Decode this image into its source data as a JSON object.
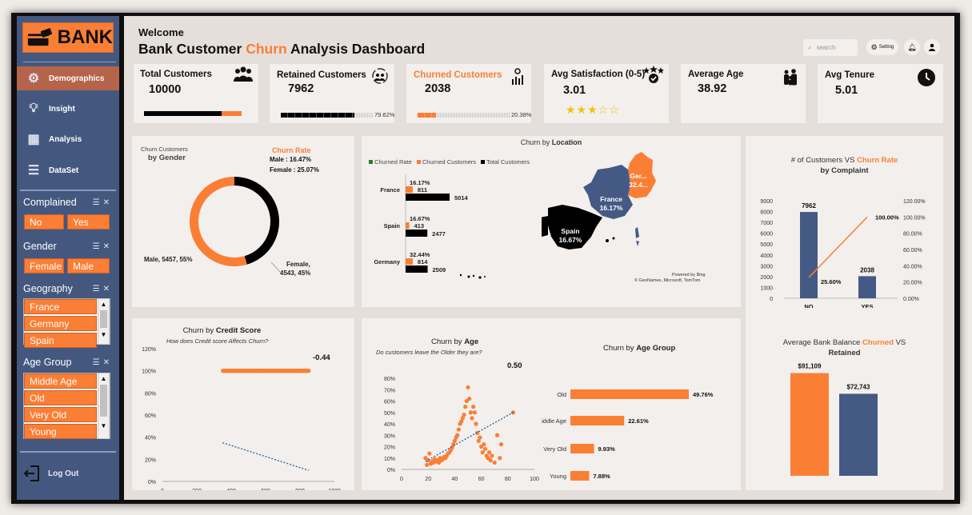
{
  "brand": {
    "logo_text": "BANK"
  },
  "sidebar": {
    "nav": [
      {
        "label": "Demographics",
        "icon": "people-network-icon"
      },
      {
        "label": "Insight",
        "icon": "lightbulb-icon"
      },
      {
        "label": "Analysis",
        "icon": "analysis-icon"
      },
      {
        "label": "DataSet",
        "icon": "database-icon"
      }
    ],
    "logout": "Log Out"
  },
  "filters": {
    "complained": {
      "title": "Complained",
      "options": [
        "No",
        "Yes"
      ]
    },
    "gender": {
      "title": "Gender",
      "options": [
        "Female",
        "Male"
      ]
    },
    "geography": {
      "title": "Geography",
      "options": [
        "France",
        "Germany",
        "Spain"
      ]
    },
    "age_group": {
      "title": "Age Group",
      "options": [
        "Middle Age",
        "Old",
        "Very Old",
        "Young"
      ]
    }
  },
  "header": {
    "welcome": "Welcome",
    "title_prefix": "Bank Customer ",
    "title_accent": "Churn",
    "title_suffix": " Analysis Dashboard",
    "search_placeholder": "search",
    "setting_label": "Setting"
  },
  "kpis": {
    "total": {
      "label": "Total Customers",
      "value": "10000"
    },
    "retained": {
      "label": "Retained Customers",
      "value": "7962",
      "pct": "79.62%",
      "fill": 0.7962
    },
    "churned": {
      "label": "Churned Customers",
      "value": "2038",
      "pct": "20.38%",
      "fill": 0.2038
    },
    "satisfaction": {
      "label": "Avg Satisfaction (0-5)",
      "value": "3.01",
      "stars": 3,
      "max_stars": 5
    },
    "age": {
      "label": "Average Age",
      "value": "38.92"
    },
    "tenure": {
      "label": "Avg Tenure",
      "value": "5.01"
    }
  },
  "gender_card": {
    "head1": "Churn Customers",
    "head2": "by Gender",
    "rate_title": "Churn Rate",
    "male_rate": "Male : 16.47%",
    "female_rate": "Female : 25.07%"
  },
  "location_card": {
    "title_prefix": "Churn by ",
    "title_bold": "Location",
    "attribution1": "Powered by Bing",
    "attribution2": "© GeoNames, Microsoft, TomTom"
  },
  "complaint_card": {
    "title_prefix": "# of Customers VS ",
    "title_accent": "Churn Rate",
    "title_line2": "by Complaint"
  },
  "credit_card": {
    "title_prefix": "Churn by ",
    "title_bold": "Credit Score",
    "subtitle": "How does Credit score Affects Churn?",
    "corr": "-0.44"
  },
  "age_card": {
    "title_prefix": "Churn by ",
    "title_bold": "Age",
    "subtitle": "Do customers leave the Older they are?",
    "corr": "0.50",
    "group_title_prefix": "Churn by ",
    "group_title_bold": "Age Group"
  },
  "balance_card": {
    "title_prefix": "Average Bank Balance ",
    "title_accent": "Churned",
    "title_suffix": " VS",
    "title_line2": "Retained"
  },
  "colors": {
    "orange": "#fb7e35",
    "navy": "#445a84",
    "black": "#000000",
    "green": "#2e7d32",
    "sidebar": "#44587f"
  },
  "chart_data": [
    {
      "type": "pie",
      "title": "Churn Customers by Gender",
      "categories": [
        "Male",
        "Female"
      ],
      "values": [
        5457,
        4543
      ],
      "percent": [
        55,
        45
      ],
      "labels": [
        "Male, 5457, 55%",
        "Female, 4543, 45%"
      ]
    },
    {
      "type": "bar",
      "title": "Churn by Location",
      "categories": [
        "France",
        "Spain",
        "Germany"
      ],
      "series": [
        {
          "name": "Churned Rate",
          "values": [
            "16.17%",
            "16.67%",
            "32.44%"
          ]
        },
        {
          "name": "Churned Customers",
          "values": [
            811,
            413,
            814
          ]
        },
        {
          "name": "Total Customers",
          "values": [
            5014,
            2477,
            2509
          ]
        }
      ],
      "map_labels": [
        {
          "name": "France",
          "value": "16.17%"
        },
        {
          "name": "Spain",
          "value": "16.67%"
        },
        {
          "name": "Ger...",
          "value": "32.4..."
        }
      ]
    },
    {
      "type": "bar",
      "title": "# of Customers VS Churn Rate by Complaint",
      "categories": [
        "NO",
        "YES"
      ],
      "series": [
        {
          "values": [
            7962,
            2038
          ],
          "labels": [
            "7962",
            "2038"
          ]
        },
        {
          "values": [
            25.6,
            100
          ],
          "labels": [
            "25.60%",
            "100.00%"
          ]
        }
      ],
      "y_ticks": [
        "0",
        "1000",
        "2000",
        "3000",
        "4000",
        "5000",
        "6000",
        "7000",
        "8000",
        "9000"
      ],
      "y2_ticks": [
        "0.00%",
        "20.00%",
        "40.00%",
        "60.00%",
        "80.00%",
        "100.00%",
        "120.00%"
      ],
      "ylim": [
        0,
        9000
      ],
      "y2lim": [
        0,
        120
      ]
    },
    {
      "type": "scatter",
      "title": "Churn by Credit Score",
      "xlim": [
        0,
        1000
      ],
      "ylim": [
        0,
        120
      ],
      "x_ticks": [
        "0",
        "200",
        "400",
        "600",
        "800",
        "1000"
      ],
      "y_ticks": [
        "0%",
        "20%",
        "40%",
        "60%",
        "80%",
        "100%",
        "120%"
      ],
      "correlation": -0.44,
      "points": [
        [
          352,
          100
        ],
        [
          355,
          100
        ],
        [
          358,
          100
        ],
        [
          361,
          100
        ],
        [
          364,
          100
        ],
        [
          367,
          100
        ],
        [
          370,
          100
        ],
        [
          373,
          100
        ],
        [
          376,
          100
        ],
        [
          379,
          100
        ],
        [
          382,
          100
        ],
        [
          385,
          100
        ],
        [
          388,
          100
        ],
        [
          391,
          100
        ],
        [
          394,
          100
        ],
        [
          397,
          100
        ],
        [
          400,
          100
        ],
        [
          403,
          100
        ],
        [
          406,
          100
        ],
        [
          409,
          100
        ],
        [
          412,
          100
        ],
        [
          415,
          100
        ],
        [
          418,
          100
        ],
        [
          421,
          100
        ],
        [
          424,
          100
        ],
        [
          427,
          100
        ],
        [
          430,
          100
        ],
        [
          433,
          100
        ],
        [
          436,
          100
        ],
        [
          439,
          100
        ],
        [
          442,
          100
        ],
        [
          445,
          100
        ],
        [
          448,
          100
        ],
        [
          451,
          100
        ],
        [
          454,
          100
        ],
        [
          457,
          100
        ],
        [
          460,
          100
        ],
        [
          463,
          100
        ],
        [
          466,
          100
        ],
        [
          469,
          100
        ],
        [
          472,
          100
        ],
        [
          475,
          100
        ],
        [
          478,
          100
        ],
        [
          481,
          100
        ],
        [
          484,
          100
        ],
        [
          487,
          100
        ],
        [
          490,
          100
        ],
        [
          493,
          100
        ],
        [
          496,
          100
        ],
        [
          499,
          100
        ],
        [
          502,
          100
        ],
        [
          505,
          100
        ],
        [
          508,
          100
        ],
        [
          511,
          100
        ],
        [
          514,
          100
        ],
        [
          517,
          100
        ],
        [
          520,
          100
        ],
        [
          523,
          100
        ],
        [
          526,
          100
        ],
        [
          529,
          100
        ],
        [
          532,
          100
        ],
        [
          535,
          100
        ],
        [
          538,
          100
        ],
        [
          541,
          100
        ],
        [
          544,
          100
        ],
        [
          547,
          100
        ],
        [
          550,
          100
        ],
        [
          553,
          100
        ],
        [
          556,
          100
        ],
        [
          559,
          100
        ],
        [
          562,
          100
        ],
        [
          565,
          100
        ],
        [
          568,
          100
        ],
        [
          571,
          100
        ],
        [
          574,
          100
        ],
        [
          577,
          100
        ],
        [
          580,
          100
        ],
        [
          583,
          100
        ],
        [
          586,
          100
        ],
        [
          589,
          100
        ],
        [
          592,
          100
        ],
        [
          595,
          100
        ],
        [
          598,
          100
        ],
        [
          601,
          100
        ],
        [
          604,
          100
        ],
        [
          607,
          100
        ],
        [
          610,
          100
        ],
        [
          613,
          100
        ],
        [
          616,
          100
        ],
        [
          619,
          100
        ],
        [
          622,
          100
        ],
        [
          625,
          100
        ],
        [
          628,
          100
        ],
        [
          631,
          100
        ],
        [
          634,
          100
        ],
        [
          637,
          100
        ],
        [
          640,
          100
        ],
        [
          643,
          100
        ],
        [
          646,
          100
        ],
        [
          649,
          100
        ],
        [
          652,
          100
        ],
        [
          655,
          100
        ],
        [
          658,
          100
        ],
        [
          661,
          100
        ],
        [
          664,
          100
        ],
        [
          667,
          100
        ],
        [
          670,
          100
        ],
        [
          673,
          100
        ],
        [
          676,
          100
        ],
        [
          679,
          100
        ],
        [
          682,
          100
        ],
        [
          685,
          100
        ],
        [
          688,
          100
        ],
        [
          691,
          100
        ],
        [
          694,
          100
        ],
        [
          697,
          100
        ],
        [
          700,
          100
        ],
        [
          703,
          100
        ],
        [
          706,
          100
        ],
        [
          709,
          100
        ],
        [
          712,
          100
        ],
        [
          715,
          100
        ],
        [
          718,
          100
        ],
        [
          721,
          100
        ],
        [
          724,
          100
        ],
        [
          727,
          100
        ],
        [
          730,
          100
        ],
        [
          733,
          100
        ],
        [
          736,
          100
        ],
        [
          739,
          100
        ],
        [
          742,
          100
        ],
        [
          745,
          100
        ],
        [
          748,
          100
        ],
        [
          751,
          100
        ],
        [
          754,
          100
        ],
        [
          757,
          100
        ],
        [
          760,
          100
        ],
        [
          763,
          100
        ],
        [
          766,
          100
        ],
        [
          769,
          100
        ],
        [
          772,
          100
        ],
        [
          775,
          100
        ],
        [
          778,
          100
        ],
        [
          781,
          100
        ],
        [
          784,
          100
        ],
        [
          787,
          100
        ],
        [
          790,
          100
        ],
        [
          793,
          100
        ],
        [
          796,
          100
        ],
        [
          799,
          100
        ],
        [
          802,
          100
        ],
        [
          805,
          100
        ],
        [
          808,
          100
        ],
        [
          811,
          100
        ],
        [
          814,
          100
        ],
        [
          817,
          100
        ],
        [
          820,
          100
        ],
        [
          823,
          100
        ],
        [
          826,
          100
        ],
        [
          829,
          100
        ],
        [
          832,
          100
        ],
        [
          835,
          100
        ],
        [
          838,
          100
        ],
        [
          841,
          100
        ],
        [
          844,
          100
        ],
        [
          847,
          100
        ],
        [
          850,
          100
        ]
      ],
      "trend": {
        "x": [
          350,
          850
        ],
        "y": [
          35,
          10
        ]
      }
    },
    {
      "type": "scatter",
      "title": "Churn by Age",
      "xlim": [
        0,
        100
      ],
      "ylim": [
        0,
        80
      ],
      "x_ticks": [
        "0",
        "20",
        "40",
        "60",
        "80",
        "100"
      ],
      "y_ticks": [
        "0%",
        "10%",
        "20%",
        "30%",
        "40%",
        "50%",
        "60%",
        "70%",
        "80%"
      ],
      "correlation": 0.5,
      "points": [
        [
          18,
          10
        ],
        [
          19,
          4
        ],
        [
          20,
          8
        ],
        [
          21,
          14
        ],
        [
          22,
          5
        ],
        [
          23,
          7
        ],
        [
          24,
          6
        ],
        [
          25,
          9
        ],
        [
          26,
          7
        ],
        [
          27,
          8
        ],
        [
          28,
          6
        ],
        [
          29,
          10
        ],
        [
          30,
          8
        ],
        [
          31,
          9
        ],
        [
          32,
          11
        ],
        [
          33,
          10
        ],
        [
          34,
          12
        ],
        [
          35,
          14
        ],
        [
          36,
          15
        ],
        [
          37,
          17
        ],
        [
          38,
          19
        ],
        [
          39,
          22
        ],
        [
          40,
          25
        ],
        [
          41,
          28
        ],
        [
          42,
          30
        ],
        [
          43,
          35
        ],
        [
          44,
          40
        ],
        [
          45,
          42
        ],
        [
          46,
          45
        ],
        [
          47,
          48
        ],
        [
          48,
          55
        ],
        [
          49,
          60
        ],
        [
          50,
          72
        ],
        [
          51,
          62
        ],
        [
          52,
          50
        ],
        [
          53,
          45
        ],
        [
          54,
          55
        ],
        [
          55,
          50
        ],
        [
          56,
          40
        ],
        [
          57,
          32
        ],
        [
          58,
          25
        ],
        [
          59,
          28
        ],
        [
          60,
          20
        ],
        [
          61,
          15
        ],
        [
          62,
          22
        ],
        [
          63,
          18
        ],
        [
          64,
          12
        ],
        [
          65,
          10
        ],
        [
          66,
          15
        ],
        [
          67,
          8
        ],
        [
          68,
          12
        ],
        [
          70,
          6
        ],
        [
          72,
          30
        ],
        [
          74,
          10
        ],
        [
          75,
          22
        ],
        [
          84,
          50
        ]
      ],
      "trend": {
        "x": [
          18,
          84
        ],
        "y": [
          7,
          50
        ]
      }
    },
    {
      "type": "bar",
      "title": "Churn by Age Group",
      "categories": [
        "Old",
        "Middle Age",
        "Very Old",
        "Young"
      ],
      "values": [
        49.76,
        22.61,
        9.93,
        7.88
      ],
      "labels": [
        "49.76%",
        "22.61%",
        "9.93%",
        "7.88%"
      ]
    },
    {
      "type": "bar",
      "title": "Average Bank Balance Churned VS Retained",
      "categories": [
        "Churned",
        "Retained"
      ],
      "values": [
        91109,
        72743
      ],
      "labels": [
        "$91,109",
        "$72,743"
      ]
    }
  ]
}
